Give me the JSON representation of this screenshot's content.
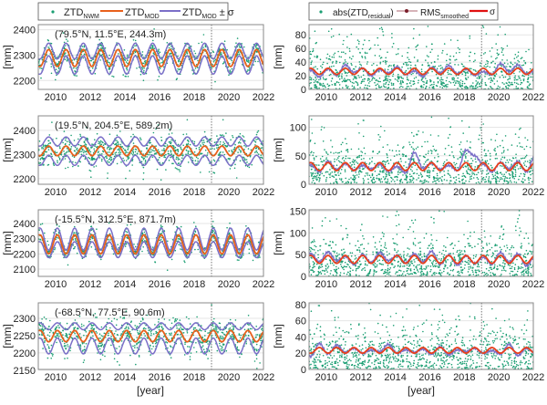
{
  "colors": {
    "nwm": "#1a9e72",
    "mod": "#e8601c",
    "band": "#7b6fc8",
    "rms": "#7b6fc8",
    "sigma": "#e8401c",
    "rms_marker": "#7a1f2b",
    "sigma_legend": "#e01010"
  },
  "legend_left": {
    "nwm": "ZTD",
    "nwm_sub": "NWM",
    "mod": "ZTD",
    "mod_sub": "MOD",
    "band": "ZTD",
    "band_sub": "MOD",
    "band_suffix": " ± σ"
  },
  "legend_right": {
    "res_pre": "abs(ZTD",
    "res_sub": "residual",
    "res_post": ")",
    "rms": "RMS",
    "rms_sub": "smoothed",
    "sigma": "σ"
  },
  "ylabel": "[mm]",
  "xlabel": "[year]",
  "chart_data": [
    {
      "type": "line",
      "side": "left",
      "location": "(79.5°N, 11.5°E, 244.3m)",
      "ylim": [
        2165,
        2420
      ],
      "yticks": [
        2200,
        2300,
        2400
      ],
      "xlim": [
        2009,
        2022
      ],
      "xticks": [
        2010,
        2012,
        2014,
        2016,
        2018,
        2020,
        2022
      ],
      "vline": 2019,
      "grid": true,
      "x": [
        2009.1,
        2009.6,
        2010.1,
        2010.6,
        2011.1,
        2011.6,
        2012.1,
        2012.6,
        2013.1,
        2013.6,
        2014.1,
        2014.6,
        2015.1,
        2015.6,
        2016.1,
        2016.6,
        2017.1,
        2017.6,
        2018.1,
        2018.6,
        2019.1,
        2019.6,
        2020.1,
        2020.6,
        2021.1,
        2021.6,
        2022.1
      ],
      "mod": [
        2255,
        2322,
        2255,
        2322,
        2255,
        2322,
        2255,
        2322,
        2255,
        2322,
        2255,
        2322,
        2255,
        2322,
        2255,
        2322,
        2255,
        2322,
        2255,
        2322,
        2255,
        2322,
        2255,
        2322,
        2255,
        2322,
        2255
      ],
      "sigma": [
        30,
        25,
        30,
        25,
        30,
        25,
        30,
        25,
        30,
        25,
        30,
        25,
        30,
        25,
        30,
        25,
        30,
        25,
        30,
        25,
        30,
        25,
        30,
        25,
        30,
        25,
        30
      ]
    },
    {
      "type": "line",
      "side": "right",
      "ylim": [
        0,
        95
      ],
      "yticks": [
        0,
        20,
        40,
        60,
        80
      ],
      "xlim": [
        2009,
        2022
      ],
      "xticks": [
        2010,
        2012,
        2014,
        2016,
        2018,
        2020,
        2022
      ],
      "vline": 2019,
      "grid": true,
      "x": [
        2009.1,
        2009.6,
        2010.1,
        2010.6,
        2011.1,
        2011.6,
        2012.1,
        2012.6,
        2013.1,
        2013.6,
        2014.1,
        2014.6,
        2015.1,
        2015.6,
        2016.1,
        2016.6,
        2017.1,
        2017.6,
        2018.1,
        2018.6,
        2019.1,
        2019.6,
        2020.1,
        2020.6,
        2021.1,
        2021.6,
        2022.1
      ],
      "sigma": [
        31,
        22,
        31,
        22,
        31,
        22,
        31,
        22,
        31,
        22,
        31,
        22,
        31,
        22,
        31,
        22,
        31,
        22,
        31,
        22,
        31,
        22,
        31,
        22,
        31,
        22,
        31
      ],
      "rms": [
        28,
        18,
        30,
        21,
        36,
        25,
        31,
        20,
        29,
        24,
        33,
        22,
        27,
        19,
        32,
        24,
        35,
        23,
        30,
        21,
        26,
        22,
        38,
        26,
        36,
        23,
        27
      ]
    },
    {
      "type": "line",
      "side": "left",
      "location": "(19.5°N, 204.5°E, 589.2m)",
      "ylim": [
        2177,
        2460
      ],
      "yticks": [
        2200,
        2300,
        2400
      ],
      "xlim": [
        2009,
        2022
      ],
      "xticks": [
        2010,
        2012,
        2014,
        2016,
        2018,
        2020,
        2022
      ],
      "vline": 2019,
      "grid": true,
      "x": [
        2009.1,
        2009.6,
        2010.1,
        2010.6,
        2011.1,
        2011.6,
        2012.1,
        2012.6,
        2013.1,
        2013.6,
        2014.1,
        2014.6,
        2015.1,
        2015.6,
        2016.1,
        2016.6,
        2017.1,
        2017.6,
        2018.1,
        2018.6,
        2019.1,
        2019.6,
        2020.1,
        2020.6,
        2021.1,
        2021.6,
        2022.1
      ],
      "mod": [
        2295,
        2335,
        2295,
        2335,
        2295,
        2335,
        2295,
        2335,
        2295,
        2335,
        2295,
        2335,
        2295,
        2335,
        2295,
        2335,
        2295,
        2335,
        2295,
        2335,
        2295,
        2335,
        2295,
        2335,
        2295,
        2335,
        2295
      ],
      "sigma": [
        40,
        38,
        40,
        38,
        40,
        38,
        40,
        38,
        40,
        38,
        40,
        38,
        40,
        38,
        40,
        38,
        40,
        38,
        40,
        38,
        40,
        38,
        40,
        38,
        40,
        38,
        40
      ]
    },
    {
      "type": "line",
      "side": "right",
      "ylim": [
        0,
        120
      ],
      "yticks": [
        0,
        50,
        100
      ],
      "xlim": [
        2009,
        2022
      ],
      "xticks": [
        2010,
        2012,
        2014,
        2016,
        2018,
        2020,
        2022
      ],
      "vline": 2019,
      "grid": true,
      "x": [
        2009.1,
        2009.6,
        2010.1,
        2010.6,
        2011.1,
        2011.6,
        2012.1,
        2012.6,
        2013.1,
        2013.6,
        2014.1,
        2014.6,
        2015.1,
        2015.6,
        2016.1,
        2016.6,
        2017.1,
        2017.6,
        2018.1,
        2018.6,
        2019.1,
        2019.6,
        2020.1,
        2020.6,
        2021.1,
        2021.6,
        2022.1
      ],
      "sigma": [
        38,
        24,
        38,
        24,
        38,
        24,
        38,
        24,
        38,
        24,
        38,
        24,
        38,
        24,
        38,
        24,
        38,
        24,
        38,
        24,
        38,
        24,
        38,
        24,
        38,
        24,
        38
      ],
      "rms": [
        34,
        22,
        40,
        26,
        36,
        25,
        33,
        27,
        35,
        23,
        31,
        20,
        56,
        28,
        37,
        26,
        33,
        24,
        60,
        50,
        35,
        22,
        38,
        27,
        40,
        22,
        50
      ]
    },
    {
      "type": "line",
      "side": "left",
      "location": "(-15.5°N, 312.5°E, 871.7m)",
      "ylim": [
        2052,
        2490
      ],
      "yticks": [
        2100,
        2200,
        2300,
        2400
      ],
      "xlim": [
        2009,
        2022
      ],
      "xticks": [
        2010,
        2012,
        2014,
        2016,
        2018,
        2020,
        2022
      ],
      "vline": 2019,
      "grid": true,
      "x": [
        2009.1,
        2009.6,
        2010.1,
        2010.6,
        2011.1,
        2011.6,
        2012.1,
        2012.6,
        2013.1,
        2013.6,
        2014.1,
        2014.6,
        2015.1,
        2015.6,
        2016.1,
        2016.6,
        2017.1,
        2017.6,
        2018.1,
        2018.6,
        2019.1,
        2019.6,
        2020.1,
        2020.6,
        2021.1,
        2021.6,
        2022.1
      ],
      "mod": [
        2325,
        2200,
        2325,
        2200,
        2325,
        2200,
        2325,
        2200,
        2325,
        2200,
        2325,
        2200,
        2325,
        2200,
        2325,
        2200,
        2325,
        2200,
        2325,
        2200,
        2325,
        2200,
        2325,
        2200,
        2325,
        2200,
        2325
      ],
      "sigma": [
        45,
        25,
        45,
        25,
        45,
        25,
        45,
        25,
        45,
        25,
        45,
        25,
        45,
        25,
        45,
        25,
        45,
        25,
        45,
        25,
        45,
        25,
        45,
        25,
        45,
        25,
        45
      ]
    },
    {
      "type": "line",
      "side": "right",
      "ylim": [
        0,
        153
      ],
      "yticks": [
        0,
        50,
        100,
        150
      ],
      "xlim": [
        2009,
        2022
      ],
      "xticks": [
        2010,
        2012,
        2014,
        2016,
        2018,
        2020,
        2022
      ],
      "vline": 2019,
      "grid": true,
      "x": [
        2009.1,
        2009.6,
        2010.1,
        2010.6,
        2011.1,
        2011.6,
        2012.1,
        2012.6,
        2013.1,
        2013.6,
        2014.1,
        2014.6,
        2015.1,
        2015.6,
        2016.1,
        2016.6,
        2017.1,
        2017.6,
        2018.1,
        2018.6,
        2019.1,
        2019.6,
        2020.1,
        2020.6,
        2021.1,
        2021.6,
        2022.1
      ],
      "sigma": [
        48,
        30,
        48,
        30,
        48,
        30,
        48,
        30,
        48,
        30,
        48,
        30,
        48,
        30,
        48,
        30,
        48,
        30,
        48,
        30,
        48,
        30,
        48,
        30,
        48,
        30,
        48
      ],
      "rms": [
        52,
        34,
        56,
        36,
        46,
        28,
        50,
        32,
        55,
        36,
        48,
        31,
        52,
        33,
        58,
        28,
        49,
        26,
        47,
        30,
        44,
        28,
        55,
        33,
        52,
        24,
        46
      ]
    },
    {
      "type": "line",
      "side": "left",
      "location": "(-68.5°N, 77.5°E, 90.6m)",
      "ylim": [
        2152,
        2345
      ],
      "yticks": [
        2150,
        2200,
        2250,
        2300
      ],
      "xlim": [
        2009,
        2022
      ],
      "xticks": [
        2010,
        2012,
        2014,
        2016,
        2018,
        2020,
        2022
      ],
      "vline": 2019,
      "grid": true,
      "x": [
        2009.1,
        2009.6,
        2010.1,
        2010.6,
        2011.1,
        2011.6,
        2012.1,
        2012.6,
        2013.1,
        2013.6,
        2014.1,
        2014.6,
        2015.1,
        2015.6,
        2016.1,
        2016.6,
        2017.1,
        2017.6,
        2018.1,
        2018.6,
        2019.1,
        2019.6,
        2020.1,
        2020.6,
        2021.1,
        2021.6,
        2022.1
      ],
      "mod": [
        2265,
        2232,
        2265,
        2232,
        2265,
        2232,
        2265,
        2232,
        2265,
        2232,
        2265,
        2232,
        2265,
        2232,
        2265,
        2232,
        2265,
        2232,
        2265,
        2232,
        2265,
        2232,
        2265,
        2232,
        2265,
        2232,
        2265
      ],
      "sigma": [
        22,
        35,
        22,
        35,
        22,
        35,
        22,
        35,
        22,
        35,
        22,
        35,
        22,
        35,
        22,
        35,
        22,
        35,
        22,
        35,
        22,
        35,
        22,
        35,
        22,
        35,
        22
      ]
    },
    {
      "type": "line",
      "side": "right",
      "ylim": [
        0,
        82
      ],
      "yticks": [
        0,
        20,
        40,
        60,
        80
      ],
      "xlim": [
        2009,
        2022
      ],
      "xticks": [
        2010,
        2012,
        2014,
        2016,
        2018,
        2020,
        2022
      ],
      "vline": 2019,
      "grid": true,
      "x": [
        2009.1,
        2009.6,
        2010.1,
        2010.6,
        2011.1,
        2011.6,
        2012.1,
        2012.6,
        2013.1,
        2013.6,
        2014.1,
        2014.6,
        2015.1,
        2015.6,
        2016.1,
        2016.6,
        2017.1,
        2017.6,
        2018.1,
        2018.6,
        2019.1,
        2019.6,
        2020.1,
        2020.6,
        2021.1,
        2021.6,
        2022.1
      ],
      "sigma": [
        20,
        27,
        20,
        27,
        20,
        27,
        20,
        27,
        20,
        27,
        20,
        27,
        20,
        27,
        20,
        27,
        20,
        27,
        20,
        27,
        20,
        27,
        20,
        27,
        20,
        27,
        20
      ],
      "rms": [
        16,
        32,
        19,
        30,
        21,
        26,
        20,
        24,
        22,
        31,
        20,
        24,
        21,
        25,
        19,
        28,
        18,
        24,
        22,
        26,
        20,
        23,
        19,
        31,
        17,
        26,
        21
      ]
    }
  ]
}
